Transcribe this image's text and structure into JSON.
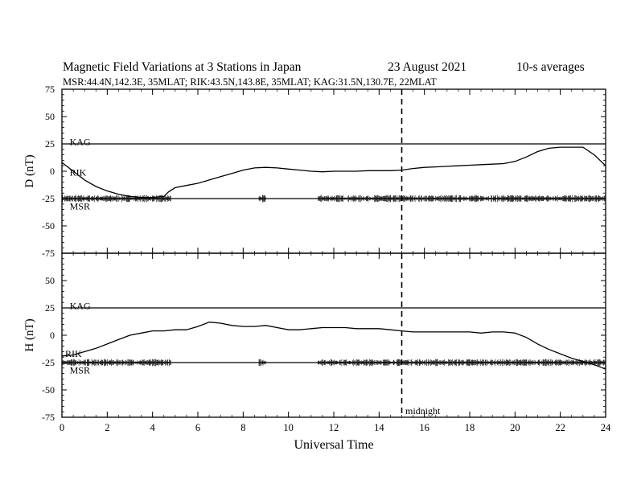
{
  "figure": {
    "title": "Magnetic Field Variations at 3 Stations in Japan",
    "date": "23  August  2021",
    "averaging": "10-s averages",
    "stations_line": "MSR:44.4N,142.3E, 35MLAT;  RIK:43.5N,143.8E, 35MLAT;  KAG:31.5N,130.7E, 22MLAT",
    "midnight_label": "midnight",
    "colors": {
      "ink": "#000000",
      "background": "#ffffff"
    }
  },
  "chart_data": [
    {
      "type": "line",
      "panel": "top",
      "ylabel": "D (nT)",
      "xlabel": "",
      "xlim": [
        0,
        24
      ],
      "ylim": [
        -75,
        75
      ],
      "yticks": [
        75,
        50,
        25,
        0,
        -25,
        -50,
        -75
      ],
      "xticks": [
        0,
        2,
        4,
        6,
        8,
        10,
        12,
        14,
        16,
        18,
        20,
        22,
        24
      ],
      "midnight_ut": 15,
      "series": [
        {
          "name": "KAG",
          "label_at": [
            0.2,
            27
          ],
          "x": [
            0,
            24
          ],
          "y": [
            25,
            25
          ]
        },
        {
          "name": "RIK",
          "label_at": [
            0.2,
            -1
          ],
          "x": [
            0,
            0.5,
            1,
            1.5,
            2,
            2.5,
            3,
            3.5,
            4,
            4.5,
            4.7,
            5,
            5.5,
            6,
            6.5,
            7,
            7.5,
            8,
            8.5,
            9,
            9.5,
            10,
            10.5,
            11,
            11.5,
            12,
            12.5,
            13,
            13.5,
            14,
            14.5,
            15,
            15.5,
            16,
            16.5,
            17,
            17.5,
            18,
            18.5,
            19,
            19.5,
            20,
            20.5,
            21,
            21.5,
            22,
            22.5,
            23,
            23.5,
            24
          ],
          "y": [
            8,
            0,
            -8,
            -14,
            -18,
            -21,
            -23,
            -24,
            -24,
            -23,
            -19,
            -15,
            -13,
            -11,
            -8,
            -5,
            -2,
            1,
            3,
            3.5,
            3,
            2,
            1,
            0,
            -0.5,
            0,
            0,
            0,
            0.5,
            0.5,
            0.5,
            1,
            2.5,
            3.5,
            4,
            4.5,
            5,
            5.5,
            6,
            6.5,
            7,
            9,
            13,
            18,
            21,
            22,
            22,
            22,
            15,
            5
          ]
        },
        {
          "name": "MSR",
          "label_at": [
            0.2,
            -32
          ],
          "x": [
            0,
            24
          ],
          "y": [
            -25,
            -25
          ],
          "noise_intervals": [
            [
              0,
              4.8
            ],
            [
              8.7,
              9.0
            ],
            [
              11.3,
              24
            ]
          ]
        }
      ]
    },
    {
      "type": "line",
      "panel": "bottom",
      "ylabel": "H (nT)",
      "xlabel": "Universal Time",
      "xlim": [
        0,
        24
      ],
      "ylim": [
        -75,
        75
      ],
      "yticks": [
        75,
        50,
        25,
        0,
        -25,
        -50,
        -75
      ],
      "xticks": [
        0,
        2,
        4,
        6,
        8,
        10,
        12,
        14,
        16,
        18,
        20,
        22,
        24
      ],
      "midnight_ut": 15,
      "series": [
        {
          "name": "KAG",
          "label_at": [
            0.2,
            27
          ],
          "x": [
            0,
            24
          ],
          "y": [
            25,
            25
          ]
        },
        {
          "name": "RIK",
          "label_at": [
            0,
            -17
          ],
          "x": [
            0,
            0.5,
            1,
            1.5,
            2,
            2.5,
            3,
            3.5,
            4,
            4.5,
            5,
            5.5,
            6,
            6.5,
            7,
            7.5,
            8,
            8.5,
            9,
            9.5,
            10,
            10.5,
            11,
            11.5,
            12,
            12.5,
            13,
            13.5,
            14,
            14.5,
            15,
            15.5,
            16,
            16.5,
            17,
            17.5,
            18,
            18.5,
            19,
            19.5,
            20,
            20.5,
            21,
            21.5,
            22,
            22.5,
            23,
            23.5,
            24
          ],
          "y": [
            -19,
            -18,
            -15,
            -12,
            -8,
            -4,
            0,
            2,
            4,
            4,
            5,
            5,
            8,
            12,
            11,
            9,
            8,
            8,
            9,
            7,
            5,
            5,
            6,
            7,
            7,
            7,
            6,
            6,
            6,
            5,
            4,
            3,
            3,
            3,
            3,
            3,
            3,
            2,
            3,
            3,
            2,
            -2,
            -8,
            -13,
            -17,
            -21,
            -24,
            -27,
            -31
          ]
        },
        {
          "name": "MSR",
          "label_at": [
            0.2,
            -32
          ],
          "x": [
            0,
            24
          ],
          "y": [
            -25,
            -25
          ],
          "noise_intervals": [
            [
              0,
              4.8
            ],
            [
              8.7,
              9.0
            ],
            [
              11.3,
              24
            ]
          ]
        }
      ]
    }
  ]
}
